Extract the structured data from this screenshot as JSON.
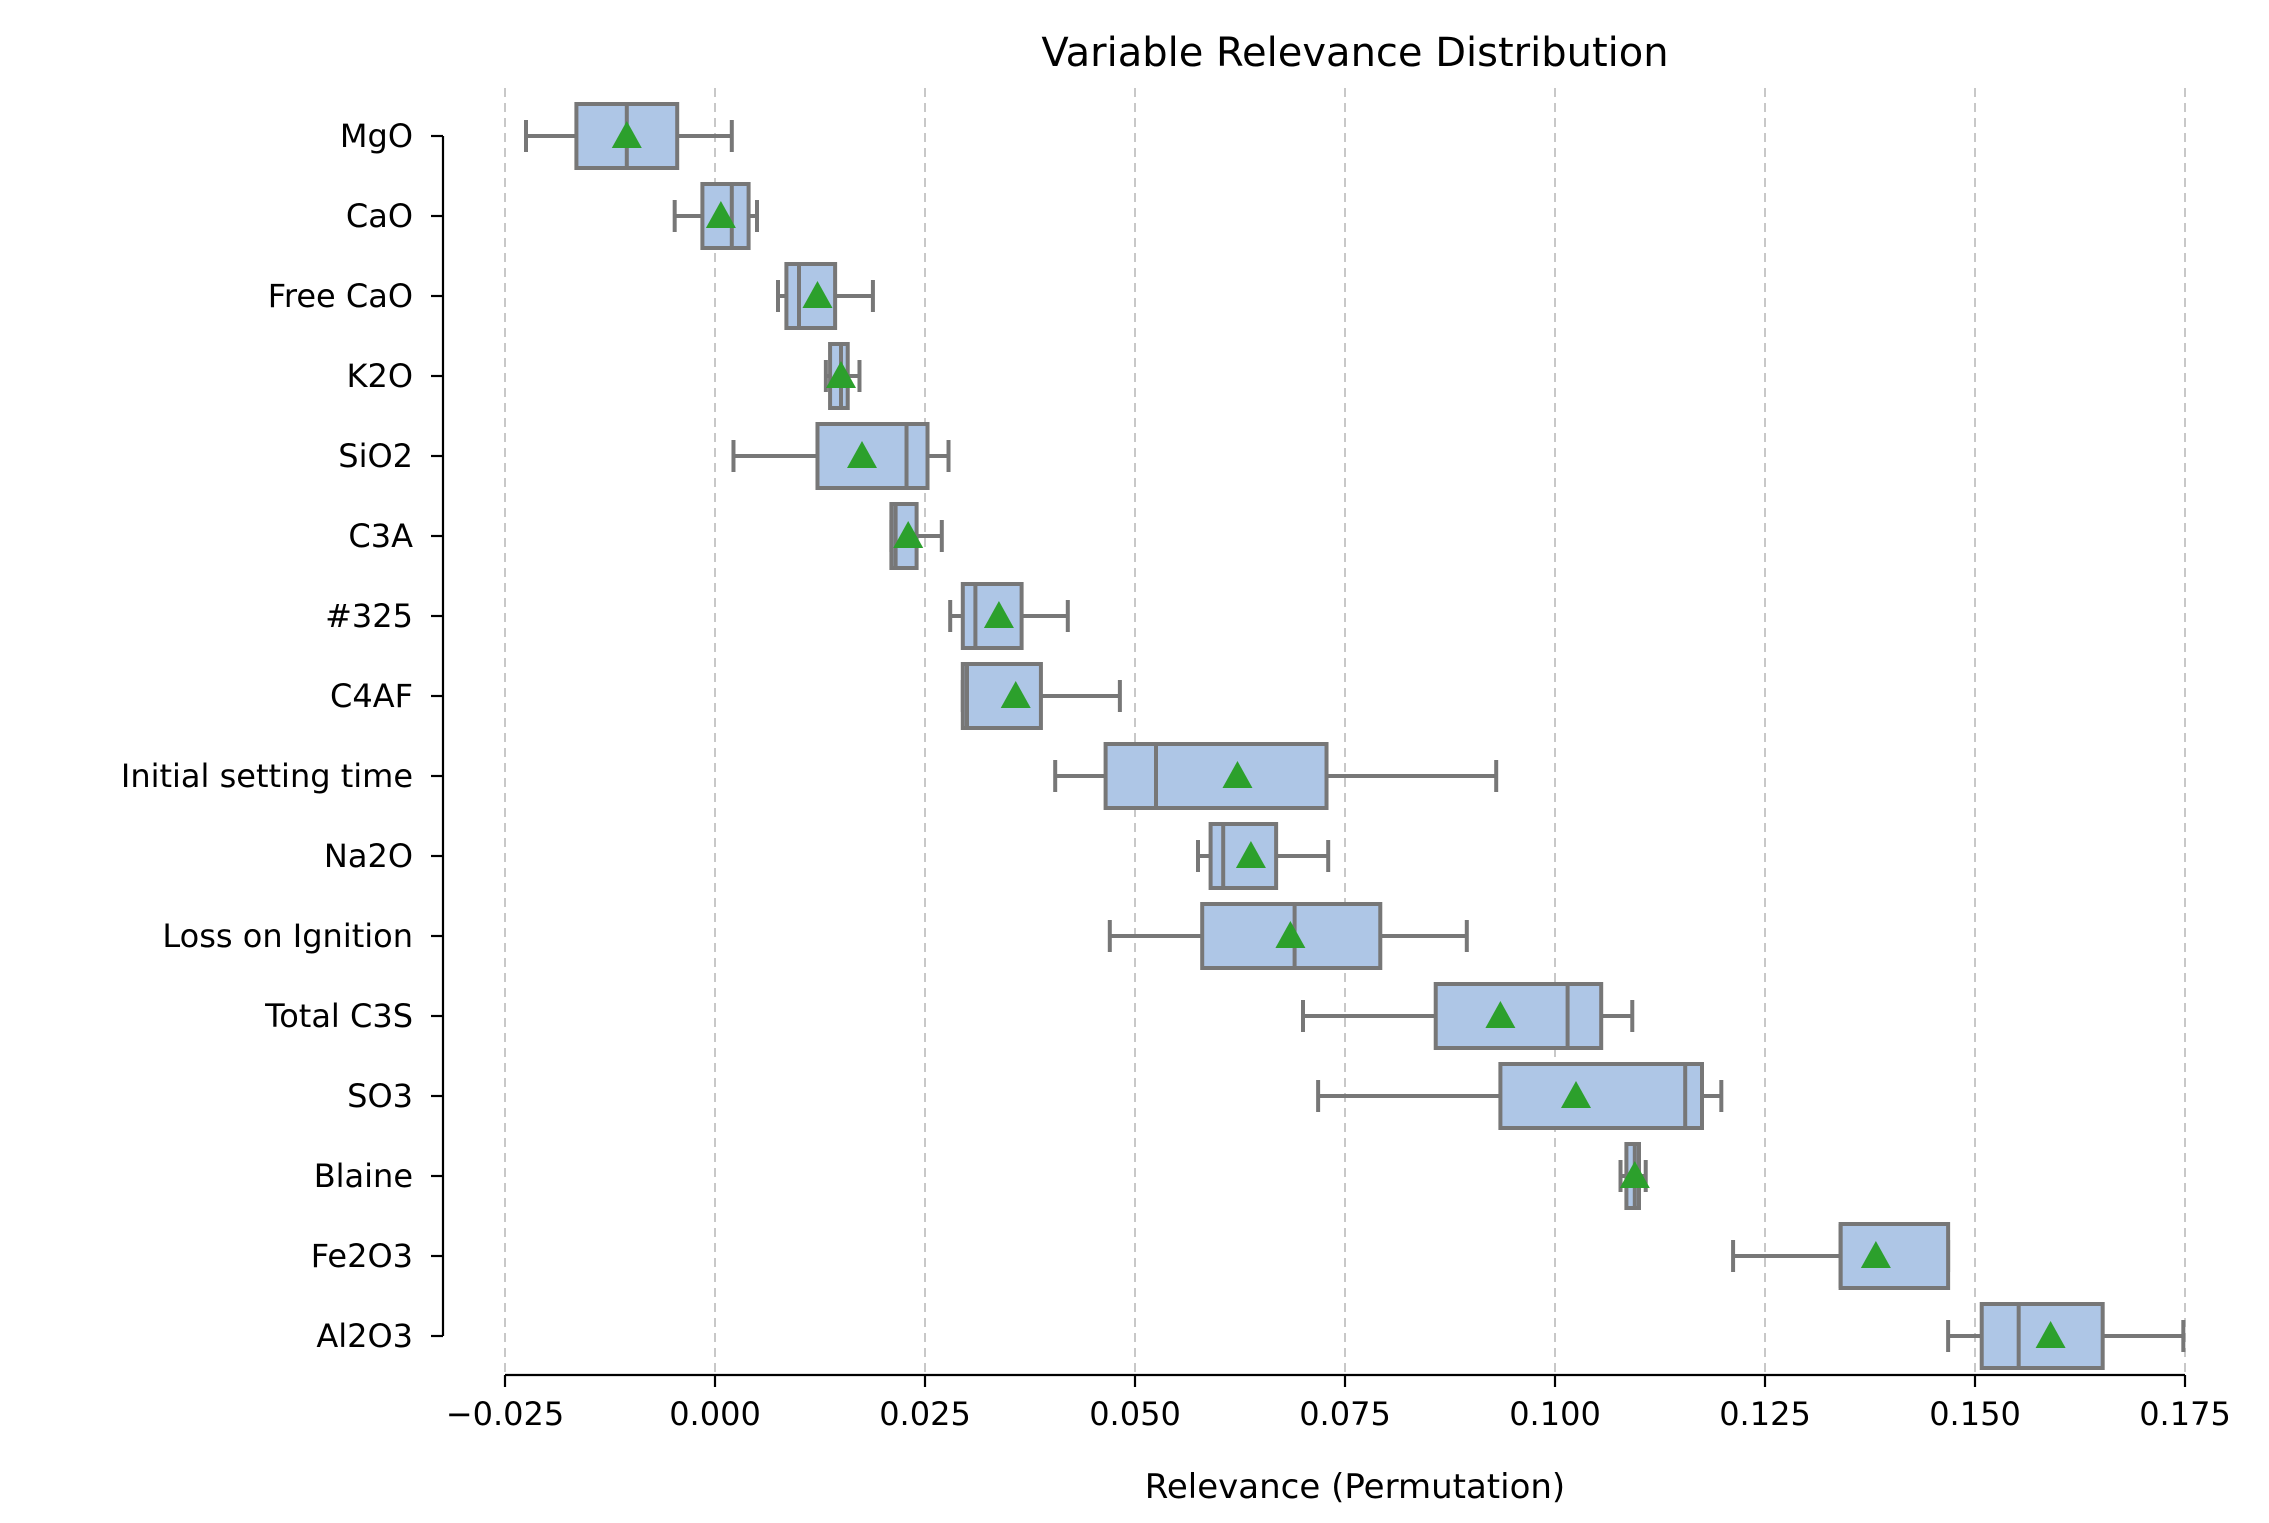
{
  "chart_data": {
    "type": "boxplot",
    "title": "Variable Relevance Distribution",
    "xlabel": "Relevance (Permutation)",
    "ylabel": "",
    "xlim": [
      -0.025,
      0.175
    ],
    "x_ticks": [
      -0.025,
      0.0,
      0.025,
      0.05,
      0.075,
      0.1,
      0.125,
      0.15,
      0.175
    ],
    "x_tick_labels": [
      "−0.025",
      "0.000",
      "0.025",
      "0.050",
      "0.075",
      "0.100",
      "0.125",
      "0.150",
      "0.175"
    ],
    "grid": "x-dashed",
    "colors": {
      "box_fill": "#aec6e6",
      "box_edge": "#777777",
      "mean_marker": "#2ca02c"
    },
    "categories": [
      "MgO",
      "CaO",
      "Free CaO",
      "K2O",
      "SiO2",
      "C3A",
      "#325",
      "C4AF",
      "Initial setting time",
      "Na2O",
      "Loss on Ignition",
      "Total C3S",
      "SO3",
      "Blaine",
      "Fe2O3",
      "Al2O3"
    ],
    "boxes": [
      {
        "label": "MgO",
        "whislo": -0.0225,
        "q1": -0.0165,
        "med": -0.0105,
        "q3": -0.0045,
        "whishi": 0.002,
        "mean": -0.0105
      },
      {
        "label": "CaO",
        "whislo": -0.0048,
        "q1": -0.0015,
        "med": 0.002,
        "q3": 0.004,
        "whishi": 0.005,
        "mean": 0.0007
      },
      {
        "label": "Free CaO",
        "whislo": 0.0075,
        "q1": 0.0085,
        "med": 0.01,
        "q3": 0.0143,
        "whishi": 0.0188,
        "mean": 0.0122
      },
      {
        "label": "K2O",
        "whislo": 0.0132,
        "q1": 0.0137,
        "med": 0.015,
        "q3": 0.0158,
        "whishi": 0.0172,
        "mean": 0.015
      },
      {
        "label": "SiO2",
        "whislo": 0.0022,
        "q1": 0.0122,
        "med": 0.0228,
        "q3": 0.0253,
        "whishi": 0.0278,
        "mean": 0.0175
      },
      {
        "label": "C3A",
        "whislo": 0.021,
        "q1": 0.021,
        "med": 0.0215,
        "q3": 0.024,
        "whishi": 0.027,
        "mean": 0.023
      },
      {
        "label": "#325",
        "whislo": 0.028,
        "q1": 0.0295,
        "med": 0.031,
        "q3": 0.0365,
        "whishi": 0.042,
        "mean": 0.0338
      },
      {
        "label": "C4AF",
        "whislo": 0.0295,
        "q1": 0.0295,
        "med": 0.03,
        "q3": 0.0388,
        "whishi": 0.0482,
        "mean": 0.0358
      },
      {
        "label": "Initial setting time",
        "whislo": 0.0405,
        "q1": 0.0465,
        "med": 0.0525,
        "q3": 0.0728,
        "whishi": 0.093,
        "mean": 0.0622
      },
      {
        "label": "Na2O",
        "whislo": 0.0575,
        "q1": 0.059,
        "med": 0.0605,
        "q3": 0.0668,
        "whishi": 0.073,
        "mean": 0.0638
      },
      {
        "label": "Loss on Ignition",
        "whislo": 0.047,
        "q1": 0.058,
        "med": 0.069,
        "q3": 0.0792,
        "whishi": 0.0895,
        "mean": 0.0685
      },
      {
        "label": "Total C3S",
        "whislo": 0.07,
        "q1": 0.0858,
        "med": 0.1015,
        "q3": 0.1055,
        "whishi": 0.1092,
        "mean": 0.0935
      },
      {
        "label": "SO3",
        "whislo": 0.0718,
        "q1": 0.0935,
        "med": 0.1155,
        "q3": 0.1175,
        "whishi": 0.1198,
        "mean": 0.1025
      },
      {
        "label": "Blaine",
        "whislo": 0.1078,
        "q1": 0.1085,
        "med": 0.1095,
        "q3": 0.11,
        "whishi": 0.1108,
        "mean": 0.1095
      },
      {
        "label": "Fe2O3",
        "whislo": 0.1212,
        "q1": 0.134,
        "med": 0.134,
        "q3": 0.1468,
        "whishi": 0.1468,
        "mean": 0.1382
      },
      {
        "label": "Al2O3",
        "whislo": 0.1468,
        "q1": 0.1508,
        "med": 0.1552,
        "q3": 0.1652,
        "whishi": 0.1748,
        "mean": 0.159
      }
    ]
  }
}
